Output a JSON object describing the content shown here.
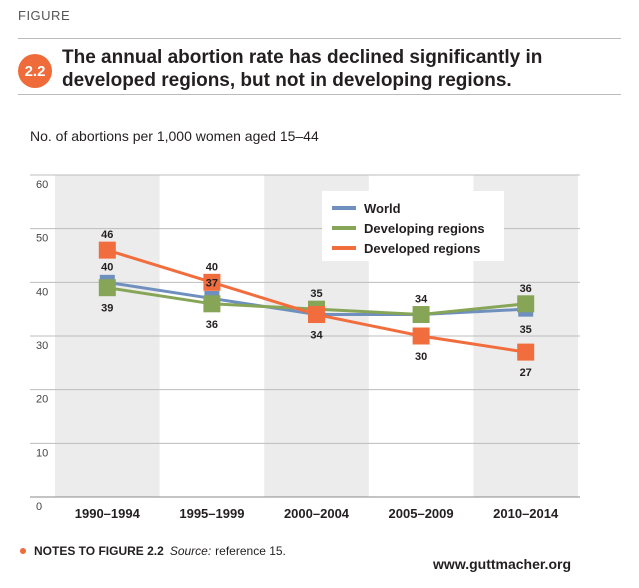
{
  "header": {
    "figure_label": "FIGURE",
    "number": "2.2",
    "title": "The annual abortion rate has declined significantly in developed regions, but not in developing regions."
  },
  "footer": {
    "notes_label": "NOTES TO FIGURE 2.2",
    "source_label": "Source:",
    "source_text": "reference 15.",
    "url": "www.guttmacher.org"
  },
  "colors": {
    "accent": "#ef6b3a",
    "world": "#6f8fbf",
    "developing": "#87a556",
    "developed": "#f26d3d",
    "band": "#ececec"
  },
  "chart_data": {
    "type": "line",
    "ylabel": "No. of abortions per 1,000 women aged 15–44",
    "xlabel": "",
    "ylim": [
      0,
      60
    ],
    "yticks": [
      0,
      10,
      20,
      30,
      40,
      50,
      60
    ],
    "grid": true,
    "legend_position": "top-right",
    "categories": [
      "1990–1994",
      "1995–1999",
      "2000–2004",
      "2005–2009",
      "2010–2014"
    ],
    "series": [
      {
        "name": "World",
        "values": [
          40,
          37,
          34,
          34,
          35
        ],
        "labels": [
          "40",
          "37",
          "34",
          "",
          "35"
        ],
        "label_pos": [
          "above",
          "above",
          "below",
          "",
          "below"
        ]
      },
      {
        "name": "Developing regions",
        "values": [
          39,
          36,
          35,
          34,
          36
        ],
        "labels": [
          "39",
          "36",
          "35",
          "34",
          "36"
        ],
        "label_pos": [
          "below",
          "below",
          "above",
          "above",
          "above"
        ]
      },
      {
        "name": "Developed regions",
        "values": [
          46,
          40,
          34,
          30,
          27
        ],
        "labels": [
          "46",
          "40",
          "",
          "30",
          "27"
        ],
        "label_pos": [
          "above",
          "above",
          "",
          "below",
          "below"
        ]
      }
    ]
  }
}
